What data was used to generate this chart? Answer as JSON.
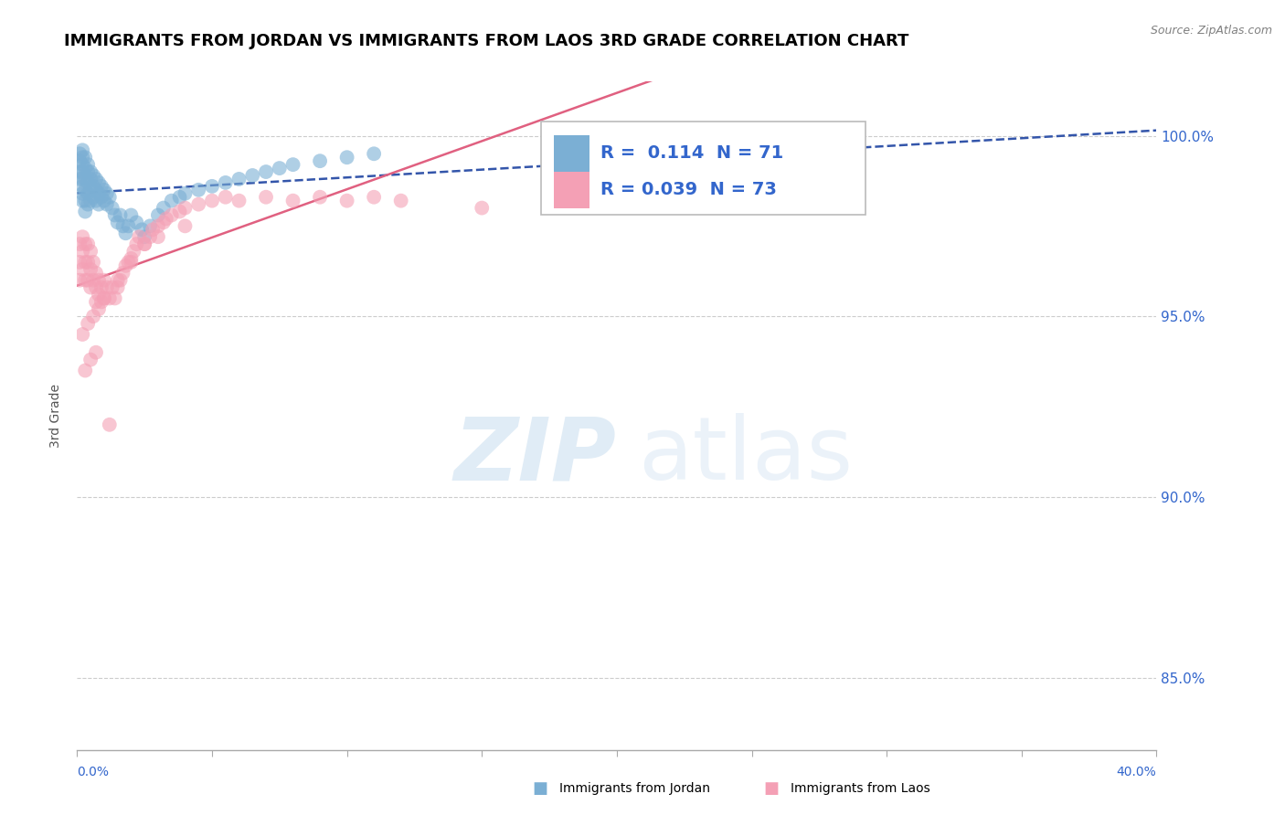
{
  "title": "IMMIGRANTS FROM JORDAN VS IMMIGRANTS FROM LAOS 3RD GRADE CORRELATION CHART",
  "source": "Source: ZipAtlas.com",
  "ylabel": "3rd Grade",
  "xmin": 0.0,
  "xmax": 0.4,
  "ymin": 83.0,
  "ymax": 101.5,
  "jordan_color": "#7bafd4",
  "laos_color": "#f4a0b5",
  "jordan_line_color": "#3355aa",
  "laos_line_color": "#e06080",
  "R_jordan": 0.114,
  "N_jordan": 71,
  "R_laos": 0.039,
  "N_laos": 73,
  "legend_text_color": "#3366cc",
  "jordan_x": [
    0.001,
    0.001,
    0.001,
    0.001,
    0.002,
    0.002,
    0.002,
    0.002,
    0.002,
    0.002,
    0.002,
    0.002,
    0.003,
    0.003,
    0.003,
    0.003,
    0.003,
    0.003,
    0.004,
    0.004,
    0.004,
    0.004,
    0.004,
    0.005,
    0.005,
    0.005,
    0.005,
    0.006,
    0.006,
    0.006,
    0.007,
    0.007,
    0.007,
    0.008,
    0.008,
    0.008,
    0.009,
    0.009,
    0.01,
    0.01,
    0.011,
    0.011,
    0.012,
    0.013,
    0.014,
    0.015,
    0.016,
    0.017,
    0.018,
    0.019,
    0.02,
    0.022,
    0.024,
    0.025,
    0.027,
    0.03,
    0.032,
    0.035,
    0.038,
    0.04,
    0.045,
    0.05,
    0.055,
    0.06,
    0.065,
    0.07,
    0.075,
    0.08,
    0.09,
    0.1,
    0.11
  ],
  "jordan_y": [
    99.5,
    99.3,
    99.0,
    98.8,
    99.6,
    99.4,
    99.2,
    99.0,
    98.8,
    98.6,
    98.4,
    98.2,
    99.4,
    99.1,
    98.8,
    98.5,
    98.2,
    97.9,
    99.2,
    99.0,
    98.7,
    98.4,
    98.1,
    99.0,
    98.8,
    98.5,
    98.2,
    98.9,
    98.6,
    98.3,
    98.8,
    98.5,
    98.2,
    98.7,
    98.4,
    98.1,
    98.6,
    98.3,
    98.5,
    98.2,
    98.4,
    98.1,
    98.3,
    98.0,
    97.8,
    97.6,
    97.8,
    97.5,
    97.3,
    97.5,
    97.8,
    97.6,
    97.4,
    97.2,
    97.5,
    97.8,
    98.0,
    98.2,
    98.3,
    98.4,
    98.5,
    98.6,
    98.7,
    98.8,
    98.9,
    99.0,
    99.1,
    99.2,
    99.3,
    99.4,
    99.5
  ],
  "laos_x": [
    0.001,
    0.001,
    0.001,
    0.002,
    0.002,
    0.002,
    0.003,
    0.003,
    0.003,
    0.004,
    0.004,
    0.004,
    0.005,
    0.005,
    0.005,
    0.006,
    0.006,
    0.007,
    0.007,
    0.007,
    0.008,
    0.008,
    0.009,
    0.009,
    0.01,
    0.01,
    0.011,
    0.012,
    0.013,
    0.014,
    0.015,
    0.016,
    0.017,
    0.018,
    0.019,
    0.02,
    0.021,
    0.022,
    0.023,
    0.025,
    0.027,
    0.028,
    0.03,
    0.032,
    0.033,
    0.035,
    0.038,
    0.04,
    0.045,
    0.05,
    0.055,
    0.06,
    0.07,
    0.08,
    0.09,
    0.1,
    0.11,
    0.12,
    0.15,
    0.002,
    0.004,
    0.006,
    0.008,
    0.01,
    0.015,
    0.02,
    0.025,
    0.03,
    0.04,
    0.003,
    0.005,
    0.007,
    0.012
  ],
  "laos_y": [
    97.0,
    96.5,
    96.0,
    97.2,
    96.8,
    96.3,
    97.0,
    96.5,
    96.0,
    97.0,
    96.5,
    96.0,
    96.8,
    96.3,
    95.8,
    96.5,
    96.0,
    96.2,
    95.8,
    95.4,
    96.0,
    95.6,
    95.8,
    95.4,
    96.0,
    95.5,
    95.8,
    95.5,
    95.8,
    95.5,
    95.8,
    96.0,
    96.2,
    96.4,
    96.5,
    96.6,
    96.8,
    97.0,
    97.2,
    97.0,
    97.2,
    97.4,
    97.5,
    97.6,
    97.7,
    97.8,
    97.9,
    98.0,
    98.1,
    98.2,
    98.3,
    98.2,
    98.3,
    98.2,
    98.3,
    98.2,
    98.3,
    98.2,
    98.0,
    94.5,
    94.8,
    95.0,
    95.2,
    95.5,
    96.0,
    96.5,
    97.0,
    97.2,
    97.5,
    93.5,
    93.8,
    94.0,
    92.0
  ]
}
